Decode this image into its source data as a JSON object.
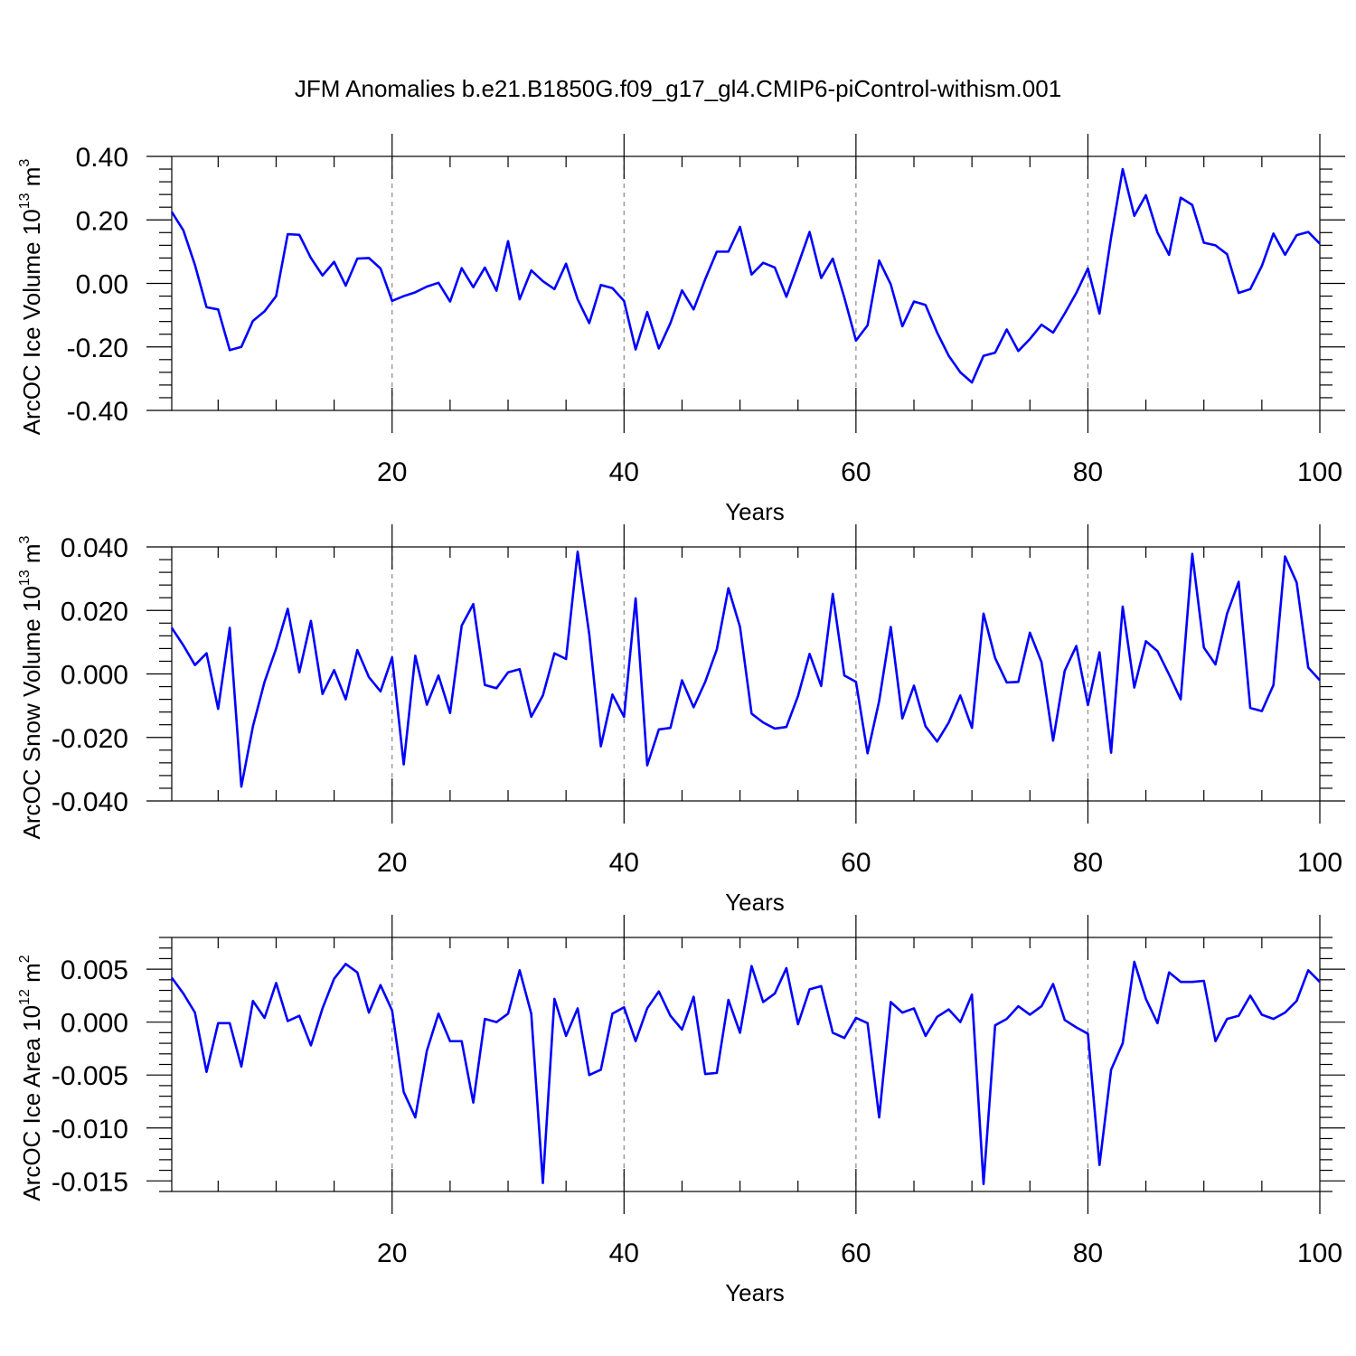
{
  "title": "JFM Anomalies b.e21.B1850G.f09_g17_gl4.CMIP6-piControl-withism.001",
  "line_color": "#0000ff",
  "chart_data": [
    {
      "type": "line",
      "title": "",
      "xlabel": "Years",
      "ylabel": "ArcOC Ice Volume 10",
      "ylabel_exp": "13",
      "ylabel_unit": " m",
      "ylabel_unit_exp": "3",
      "xlim": [
        1,
        100
      ],
      "ylim": [
        -0.4,
        0.4
      ],
      "xticks": [
        20,
        40,
        60,
        80,
        100
      ],
      "yticks": [
        -0.4,
        -0.2,
        0.0,
        0.2,
        0.4
      ],
      "ytick_labels": [
        "-0.40",
        "-0.20",
        "0.00",
        "0.20",
        "0.40"
      ],
      "grid": "vertical dashed at major x ticks",
      "series": [
        {
          "x": [
            1,
            2,
            3,
            4,
            5,
            6,
            7,
            8,
            9,
            10,
            11,
            12,
            13,
            14,
            15,
            16,
            17,
            18,
            19,
            20,
            21,
            22,
            23,
            24,
            25,
            26,
            27,
            28,
            29,
            30,
            31,
            32,
            33,
            34,
            35,
            36,
            37,
            38,
            39,
            40,
            41,
            42,
            43,
            44,
            45,
            46,
            47,
            48,
            49,
            50,
            51,
            52,
            53,
            54,
            55,
            56,
            57,
            58,
            59,
            60,
            61,
            62,
            63,
            64,
            65,
            66,
            67,
            68,
            69,
            70,
            71,
            72,
            73,
            74,
            75,
            76,
            77,
            78,
            79,
            80,
            81,
            82,
            83,
            84,
            85,
            86,
            87,
            88,
            89,
            90,
            91,
            92,
            93,
            94,
            95,
            96,
            97,
            98,
            99,
            100
          ],
          "values": [
            0.225,
            0.167,
            0.058,
            -0.075,
            -0.082,
            -0.21,
            -0.2,
            -0.118,
            -0.088,
            -0.04,
            0.155,
            0.153,
            0.08,
            0.025,
            0.068,
            -0.007,
            0.078,
            0.08,
            0.047,
            -0.055,
            -0.04,
            -0.028,
            -0.01,
            0.002,
            -0.057,
            0.048,
            -0.012,
            0.05,
            -0.023,
            0.133,
            -0.05,
            0.041,
            0.007,
            -0.018,
            0.062,
            -0.05,
            -0.125,
            -0.005,
            -0.015,
            -0.055,
            -0.208,
            -0.09,
            -0.205,
            -0.125,
            -0.022,
            -0.082,
            0.013,
            0.1,
            0.1,
            0.178,
            0.028,
            0.065,
            0.05,
            -0.042,
            0.058,
            0.162,
            0.017,
            0.078,
            -0.045,
            -0.18,
            -0.132,
            0.072,
            -0.003,
            -0.135,
            -0.057,
            -0.068,
            -0.155,
            -0.228,
            -0.28,
            -0.312,
            -0.228,
            -0.218,
            -0.145,
            -0.213,
            -0.175,
            -0.13,
            -0.155,
            -0.095,
            -0.03,
            0.047,
            -0.095,
            0.145,
            0.36,
            0.213,
            0.278,
            0.16,
            0.09,
            0.27,
            0.247,
            0.128,
            0.12,
            0.092,
            -0.03,
            -0.018,
            0.055,
            0.157,
            0.09,
            0.152,
            0.162,
            0.125
          ]
        }
      ]
    },
    {
      "type": "line",
      "title": "",
      "xlabel": "Years",
      "ylabel": "ArcOC Snow Volume 10",
      "ylabel_exp": "13",
      "ylabel_unit": " m",
      "ylabel_unit_exp": "3",
      "xlim": [
        1,
        100
      ],
      "ylim": [
        -0.04,
        0.04
      ],
      "xticks": [
        20,
        40,
        60,
        80,
        100
      ],
      "yticks": [
        -0.04,
        -0.02,
        0.0,
        0.02,
        0.04
      ],
      "ytick_labels": [
        "-0.040",
        "-0.020",
        "0.000",
        "0.020",
        "0.040"
      ],
      "grid": "vertical dashed at major x ticks",
      "series": [
        {
          "x": [
            1,
            2,
            3,
            4,
            5,
            6,
            7,
            8,
            9,
            10,
            11,
            12,
            13,
            14,
            15,
            16,
            17,
            18,
            19,
            20,
            21,
            22,
            23,
            24,
            25,
            26,
            27,
            28,
            29,
            30,
            31,
            32,
            33,
            34,
            35,
            36,
            37,
            38,
            39,
            40,
            41,
            42,
            43,
            44,
            45,
            46,
            47,
            48,
            49,
            50,
            51,
            52,
            53,
            54,
            55,
            56,
            57,
            58,
            59,
            60,
            61,
            62,
            63,
            64,
            65,
            66,
            67,
            68,
            69,
            70,
            71,
            72,
            73,
            74,
            75,
            76,
            77,
            78,
            79,
            80,
            81,
            82,
            83,
            84,
            85,
            86,
            87,
            88,
            89,
            90,
            91,
            92,
            93,
            94,
            95,
            96,
            97,
            98,
            99,
            100
          ],
          "values": [
            0.0145,
            0.009,
            0.0028,
            0.0065,
            -0.011,
            0.0145,
            -0.0355,
            -0.0165,
            -0.0025,
            0.008,
            0.0205,
            0.0005,
            0.0167,
            -0.0063,
            0.0012,
            -0.008,
            0.0075,
            -0.001,
            -0.0055,
            0.0052,
            -0.0285,
            0.0057,
            -0.0097,
            -0.0005,
            -0.0123,
            0.0152,
            0.022,
            -0.0035,
            -0.0045,
            0.0005,
            0.0015,
            -0.0135,
            -0.0068,
            0.0065,
            0.0047,
            0.0385,
            0.0125,
            -0.0228,
            -0.0065,
            -0.0135,
            0.0238,
            -0.0288,
            -0.0175,
            -0.017,
            -0.002,
            -0.0105,
            -0.0025,
            0.0077,
            0.027,
            0.0148,
            -0.0125,
            -0.0153,
            -0.0172,
            -0.0167,
            -0.007,
            0.0063,
            -0.0038,
            0.0252,
            -0.0005,
            -0.0025,
            -0.025,
            -0.0085,
            0.0148,
            -0.014,
            -0.0037,
            -0.0165,
            -0.0213,
            -0.0153,
            -0.0068,
            -0.017,
            0.019,
            0.005,
            -0.0027,
            -0.0025,
            0.013,
            0.0037,
            -0.021,
            0.001,
            0.0088,
            -0.0098,
            0.0068,
            -0.0248,
            0.0212,
            -0.0043,
            0.0103,
            0.0072,
            -0.0002,
            -0.008,
            0.0378,
            0.0083,
            0.003,
            0.019,
            0.029,
            -0.0107,
            -0.0117,
            -0.0035,
            0.037,
            0.0288,
            0.002,
            -0.002
          ]
        }
      ]
    },
    {
      "type": "line",
      "title": "",
      "xlabel": "Years",
      "ylabel": "ArcOC Ice Area 10",
      "ylabel_exp": "12",
      "ylabel_unit": " m",
      "ylabel_unit_exp": "2",
      "xlim": [
        1,
        100
      ],
      "ylim": [
        -0.016,
        0.008
      ],
      "xticks": [
        20,
        40,
        60,
        80,
        100
      ],
      "yticks": [
        -0.015,
        -0.01,
        -0.005,
        0.0,
        0.005
      ],
      "ytick_labels": [
        "-0.015",
        "-0.010",
        "-0.005",
        "0.000",
        "0.005"
      ],
      "grid": "vertical dashed at major x ticks",
      "series": [
        {
          "x": [
            1,
            2,
            3,
            4,
            5,
            6,
            7,
            8,
            9,
            10,
            11,
            12,
            13,
            14,
            15,
            16,
            17,
            18,
            19,
            20,
            21,
            22,
            23,
            24,
            25,
            26,
            27,
            28,
            29,
            30,
            31,
            32,
            33,
            34,
            35,
            36,
            37,
            38,
            39,
            40,
            41,
            42,
            43,
            44,
            45,
            46,
            47,
            48,
            49,
            50,
            51,
            52,
            53,
            54,
            55,
            56,
            57,
            58,
            59,
            60,
            61,
            62,
            63,
            64,
            65,
            66,
            67,
            68,
            69,
            70,
            71,
            72,
            73,
            74,
            75,
            76,
            77,
            78,
            79,
            80,
            81,
            82,
            83,
            84,
            85,
            86,
            87,
            88,
            89,
            90,
            91,
            92,
            93,
            94,
            95,
            96,
            97,
            98,
            99,
            100
          ],
          "values": [
            0.0042,
            0.0027,
            0.0009,
            -0.0047,
            -0.0001,
            -0.0001,
            -0.0042,
            0.002,
            0.0004,
            0.0037,
            0.0001,
            0.0006,
            -0.0022,
            0.0013,
            0.0041,
            0.0055,
            0.0047,
            0.0009,
            0.0035,
            0.0011,
            -0.0066,
            -0.009,
            -0.0027,
            0.0008,
            -0.0018,
            -0.0018,
            -0.0076,
            0.0003,
            0.0,
            0.0008,
            0.0049,
            0.0008,
            -0.0152,
            0.0022,
            -0.0013,
            0.0013,
            -0.005,
            -0.0045,
            0.0008,
            0.0014,
            -0.0018,
            0.0013,
            0.0029,
            0.0006,
            -0.0007,
            0.0024,
            -0.0049,
            -0.0048,
            0.0021,
            -0.001,
            0.0053,
            0.0019,
            0.0027,
            0.0051,
            -0.0002,
            0.0031,
            0.0034,
            -0.001,
            -0.0015,
            0.0004,
            -0.0001,
            -0.009,
            0.0019,
            0.0009,
            0.0013,
            -0.0013,
            0.0005,
            0.0012,
            0.0,
            0.0026,
            -0.0153,
            -0.0003,
            0.0003,
            0.0015,
            0.0007,
            0.0015,
            0.0036,
            0.0002,
            -0.0005,
            -0.0011,
            -0.0135,
            -0.0045,
            -0.002,
            0.0057,
            0.0022,
            -0.0001,
            0.0047,
            0.0038,
            0.0038,
            0.0039,
            -0.0018,
            0.0003,
            0.0006,
            0.0025,
            0.0007,
            0.0003,
            0.0009,
            0.002,
            0.0049,
            0.0038
          ]
        }
      ]
    }
  ]
}
